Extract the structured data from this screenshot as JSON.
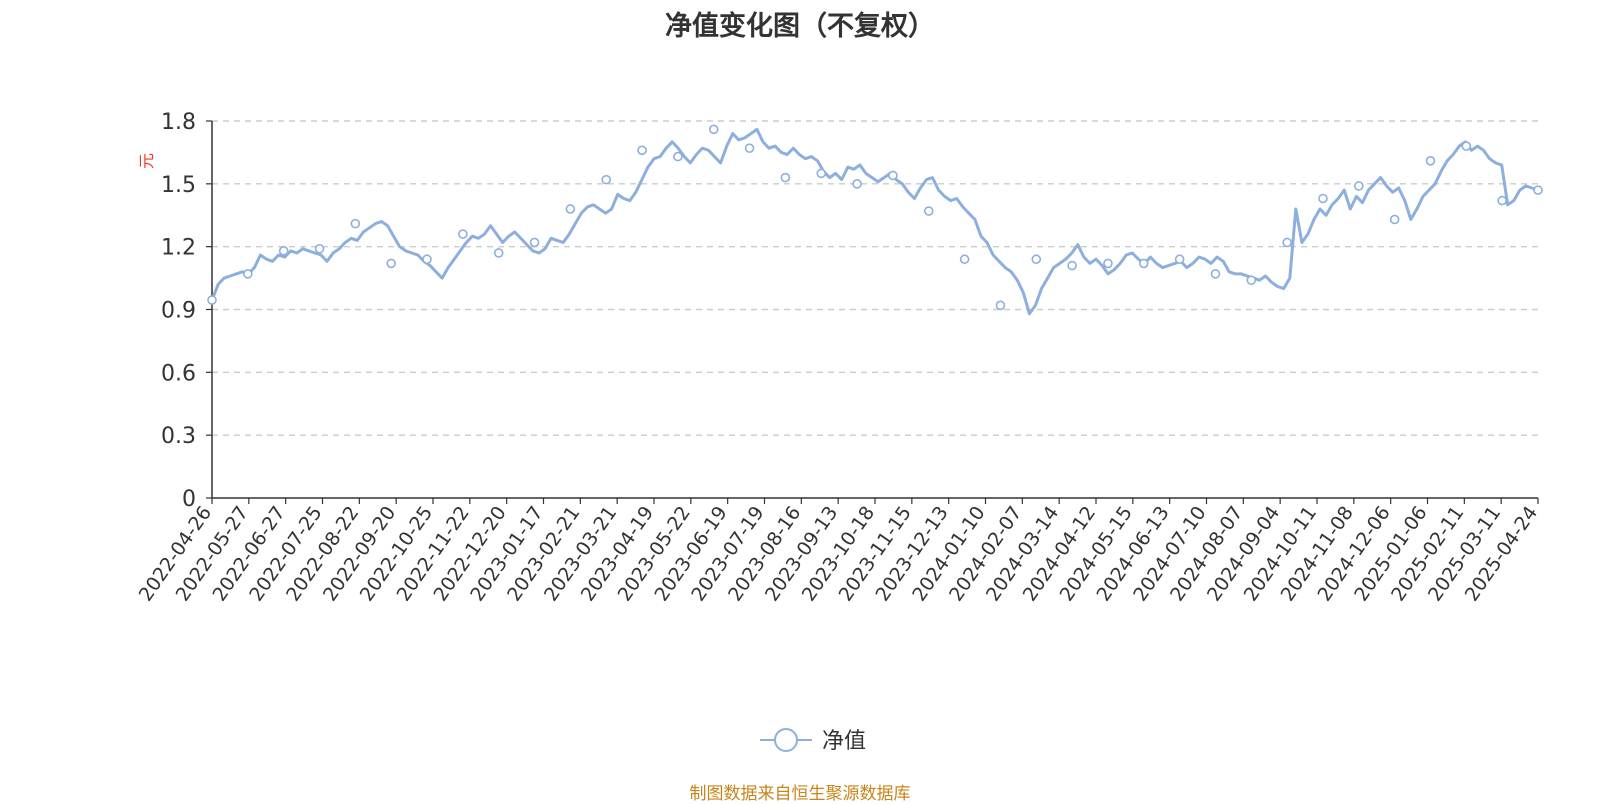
{
  "title": "净值变化图（不复权）",
  "source": "制图数据来自恒生聚源数据库",
  "colors": {
    "line": "#8dafdd",
    "axis": "#333333",
    "grid": "#cccccc",
    "unit": "#e8392d",
    "source": "#c8861a"
  },
  "chart_data": {
    "type": "line",
    "title": "净值变化图（不复权）",
    "ylabel": "元",
    "ylim": [
      0,
      1.8
    ],
    "y_ticks": [
      "0",
      "0.3",
      "0.6",
      "0.9",
      "1.2",
      "1.5",
      "1.8"
    ],
    "grid": true,
    "legend_position": "bottom-center",
    "x_tick_labels": [
      "2022-04-26",
      "2022-05-27",
      "2022-06-27",
      "2022-07-25",
      "2022-08-22",
      "2022-09-20",
      "2022-10-25",
      "2022-11-22",
      "2022-12-20",
      "2023-01-17",
      "2023-02-21",
      "2023-03-21",
      "2023-04-19",
      "2023-05-22",
      "2023-06-19",
      "2023-07-19",
      "2023-08-16",
      "2023-09-13",
      "2023-10-18",
      "2023-11-15",
      "2023-12-13",
      "2024-01-10",
      "2024-02-07",
      "2024-03-14",
      "2024-04-12",
      "2024-05-15",
      "2024-06-13",
      "2024-07-10",
      "2024-08-07",
      "2024-09-04",
      "2024-10-11",
      "2024-11-08",
      "2024-12-06",
      "2025-01-06",
      "2025-02-11",
      "2025-03-11",
      "2025-04-24"
    ],
    "series": [
      {
        "name": "净值",
        "marker_values": [
          0.945,
          1.07,
          1.18,
          1.19,
          1.31,
          1.12,
          1.14,
          1.26,
          1.17,
          1.22,
          1.38,
          1.52,
          1.66,
          1.63,
          1.76,
          1.67,
          1.53,
          1.55,
          1.5,
          1.54,
          1.37,
          1.14,
          0.92,
          1.14,
          1.11,
          1.12,
          1.12,
          1.14,
          1.07,
          1.04,
          1.22,
          1.43,
          1.49,
          1.33,
          1.61,
          1.68,
          1.42,
          1.47
        ],
        "values": [
          0.945,
          1.02,
          1.05,
          1.06,
          1.07,
          1.08,
          1.07,
          1.1,
          1.16,
          1.14,
          1.13,
          1.16,
          1.15,
          1.18,
          1.17,
          1.19,
          1.18,
          1.17,
          1.16,
          1.13,
          1.17,
          1.19,
          1.22,
          1.24,
          1.23,
          1.27,
          1.29,
          1.31,
          1.32,
          1.3,
          1.25,
          1.2,
          1.18,
          1.17,
          1.16,
          1.13,
          1.11,
          1.08,
          1.05,
          1.1,
          1.14,
          1.18,
          1.22,
          1.25,
          1.24,
          1.26,
          1.3,
          1.26,
          1.22,
          1.25,
          1.27,
          1.24,
          1.21,
          1.18,
          1.17,
          1.19,
          1.24,
          1.23,
          1.22,
          1.26,
          1.31,
          1.36,
          1.39,
          1.4,
          1.38,
          1.36,
          1.38,
          1.45,
          1.43,
          1.42,
          1.46,
          1.52,
          1.58,
          1.62,
          1.63,
          1.67,
          1.7,
          1.67,
          1.63,
          1.6,
          1.64,
          1.67,
          1.66,
          1.63,
          1.6,
          1.68,
          1.74,
          1.71,
          1.72,
          1.74,
          1.76,
          1.7,
          1.67,
          1.68,
          1.65,
          1.64,
          1.67,
          1.64,
          1.62,
          1.63,
          1.61,
          1.56,
          1.53,
          1.55,
          1.52,
          1.58,
          1.57,
          1.59,
          1.55,
          1.53,
          1.51,
          1.53,
          1.55,
          1.52,
          1.5,
          1.46,
          1.43,
          1.48,
          1.52,
          1.53,
          1.47,
          1.44,
          1.42,
          1.43,
          1.39,
          1.36,
          1.33,
          1.25,
          1.22,
          1.16,
          1.13,
          1.1,
          1.08,
          1.04,
          0.98,
          0.88,
          0.92,
          1.0,
          1.05,
          1.1,
          1.12,
          1.14,
          1.17,
          1.21,
          1.15,
          1.12,
          1.14,
          1.11,
          1.07,
          1.09,
          1.12,
          1.16,
          1.17,
          1.14,
          1.12,
          1.15,
          1.12,
          1.1,
          1.11,
          1.12,
          1.13,
          1.1,
          1.12,
          1.15,
          1.14,
          1.12,
          1.15,
          1.13,
          1.08,
          1.07,
          1.07,
          1.06,
          1.05,
          1.04,
          1.06,
          1.03,
          1.01,
          1.0,
          1.05,
          1.38,
          1.22,
          1.26,
          1.33,
          1.38,
          1.35,
          1.4,
          1.43,
          1.47,
          1.38,
          1.44,
          1.41,
          1.47,
          1.5,
          1.53,
          1.49,
          1.46,
          1.48,
          1.42,
          1.33,
          1.38,
          1.44,
          1.47,
          1.5,
          1.56,
          1.61,
          1.64,
          1.68,
          1.7,
          1.66,
          1.68,
          1.66,
          1.62,
          1.6,
          1.59,
          1.4,
          1.42,
          1.47,
          1.49,
          1.48,
          1.47
        ]
      }
    ]
  },
  "legend": {
    "label": "净值"
  }
}
